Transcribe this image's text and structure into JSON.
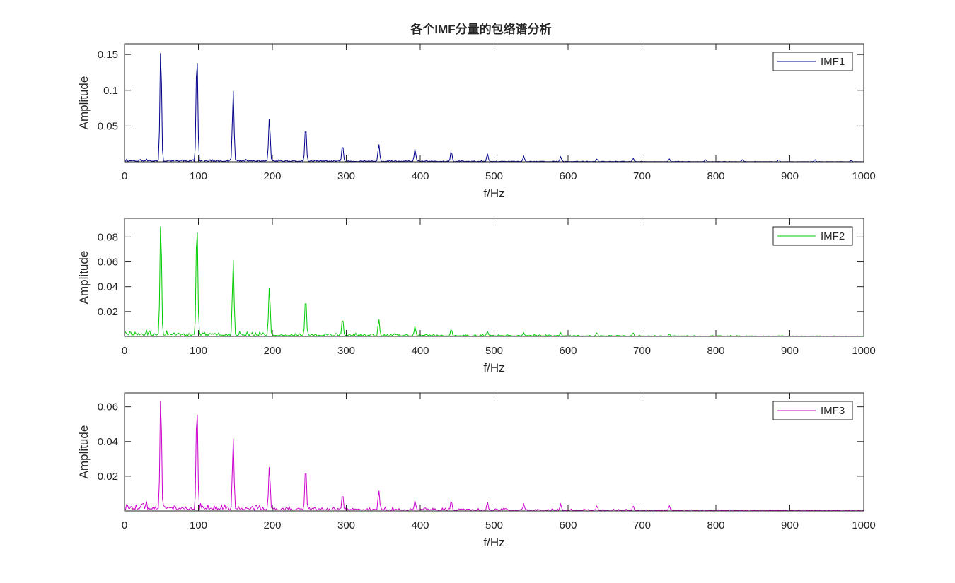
{
  "title": "各个IMF分量的包络谱分析",
  "chart_data": [
    {
      "type": "line",
      "title": "各个IMF分量的包络谱分析",
      "xlabel": "f/Hz",
      "ylabel": "Amplitude",
      "xlim": [
        0,
        1000
      ],
      "ylim": [
        0,
        0.165
      ],
      "xticks": [
        0,
        100,
        200,
        300,
        400,
        500,
        600,
        700,
        800,
        900,
        1000
      ],
      "yticks": [
        0.05,
        0.1,
        0.15
      ],
      "ytick_labels": [
        "0.05",
        "0.1",
        "0.15"
      ],
      "legend": "top-right",
      "grid": false,
      "series": [
        {
          "name": "IMF1",
          "color": "#00008b",
          "noise_level": 0.003,
          "noise_seed": 11,
          "peaks": [
            {
              "x": 49,
              "y": 0.163
            },
            {
              "x": 98,
              "y": 0.157
            },
            {
              "x": 147,
              "y": 0.1
            },
            {
              "x": 196,
              "y": 0.062
            },
            {
              "x": 245,
              "y": 0.051
            },
            {
              "x": 295,
              "y": 0.024
            },
            {
              "x": 344,
              "y": 0.025
            },
            {
              "x": 393,
              "y": 0.018
            },
            {
              "x": 442,
              "y": 0.015
            },
            {
              "x": 491,
              "y": 0.011
            },
            {
              "x": 540,
              "y": 0.008
            },
            {
              "x": 590,
              "y": 0.007
            },
            {
              "x": 639,
              "y": 0.004
            },
            {
              "x": 688,
              "y": 0.005
            },
            {
              "x": 737,
              "y": 0.004
            },
            {
              "x": 786,
              "y": 0.003
            },
            {
              "x": 836,
              "y": 0.003
            },
            {
              "x": 885,
              "y": 0.003
            },
            {
              "x": 934,
              "y": 0.003
            },
            {
              "x": 983,
              "y": 0.002
            }
          ]
        }
      ]
    },
    {
      "type": "line",
      "xlabel": "f/Hz",
      "ylabel": "Amplitude",
      "xlim": [
        0,
        1000
      ],
      "ylim": [
        0,
        0.095
      ],
      "xticks": [
        0,
        100,
        200,
        300,
        400,
        500,
        600,
        700,
        800,
        900,
        1000
      ],
      "yticks": [
        0.02,
        0.04,
        0.06,
        0.08
      ],
      "ytick_labels": [
        "0.02",
        "0.04",
        "0.06",
        "0.08"
      ],
      "legend": "top-right",
      "grid": false,
      "series": [
        {
          "name": "IMF2",
          "color": "#00cc00",
          "noise_level": 0.0035,
          "noise_seed": 29,
          "peaks": [
            {
              "x": 49,
              "y": 0.095
            },
            {
              "x": 98,
              "y": 0.095
            },
            {
              "x": 147,
              "y": 0.062
            },
            {
              "x": 196,
              "y": 0.04
            },
            {
              "x": 245,
              "y": 0.032
            },
            {
              "x": 295,
              "y": 0.015
            },
            {
              "x": 344,
              "y": 0.014
            },
            {
              "x": 393,
              "y": 0.008
            },
            {
              "x": 442,
              "y": 0.006
            },
            {
              "x": 491,
              "y": 0.004
            },
            {
              "x": 540,
              "y": 0.003
            },
            {
              "x": 590,
              "y": 0.003
            },
            {
              "x": 639,
              "y": 0.003
            },
            {
              "x": 688,
              "y": 0.003
            },
            {
              "x": 737,
              "y": 0.002
            }
          ]
        }
      ]
    },
    {
      "type": "line",
      "xlabel": "f/Hz",
      "ylabel": "Amplitude",
      "xlim": [
        0,
        1000
      ],
      "ylim": [
        0,
        0.068
      ],
      "xticks": [
        0,
        100,
        200,
        300,
        400,
        500,
        600,
        700,
        800,
        900,
        1000
      ],
      "yticks": [
        0.02,
        0.04,
        0.06
      ],
      "ytick_labels": [
        "0.02",
        "0.04",
        "0.06"
      ],
      "legend": "top-right",
      "grid": false,
      "series": [
        {
          "name": "IMF3",
          "color": "#cc00cc",
          "noise_level": 0.0035,
          "noise_seed": 47,
          "peaks": [
            {
              "x": 49,
              "y": 0.068
            },
            {
              "x": 98,
              "y": 0.063
            },
            {
              "x": 147,
              "y": 0.042
            },
            {
              "x": 196,
              "y": 0.026
            },
            {
              "x": 245,
              "y": 0.026
            },
            {
              "x": 295,
              "y": 0.01
            },
            {
              "x": 344,
              "y": 0.012
            },
            {
              "x": 393,
              "y": 0.006
            },
            {
              "x": 442,
              "y": 0.006
            },
            {
              "x": 491,
              "y": 0.005
            },
            {
              "x": 540,
              "y": 0.004
            },
            {
              "x": 590,
              "y": 0.004
            },
            {
              "x": 639,
              "y": 0.003
            },
            {
              "x": 688,
              "y": 0.003
            },
            {
              "x": 737,
              "y": 0.003
            }
          ]
        }
      ]
    }
  ]
}
